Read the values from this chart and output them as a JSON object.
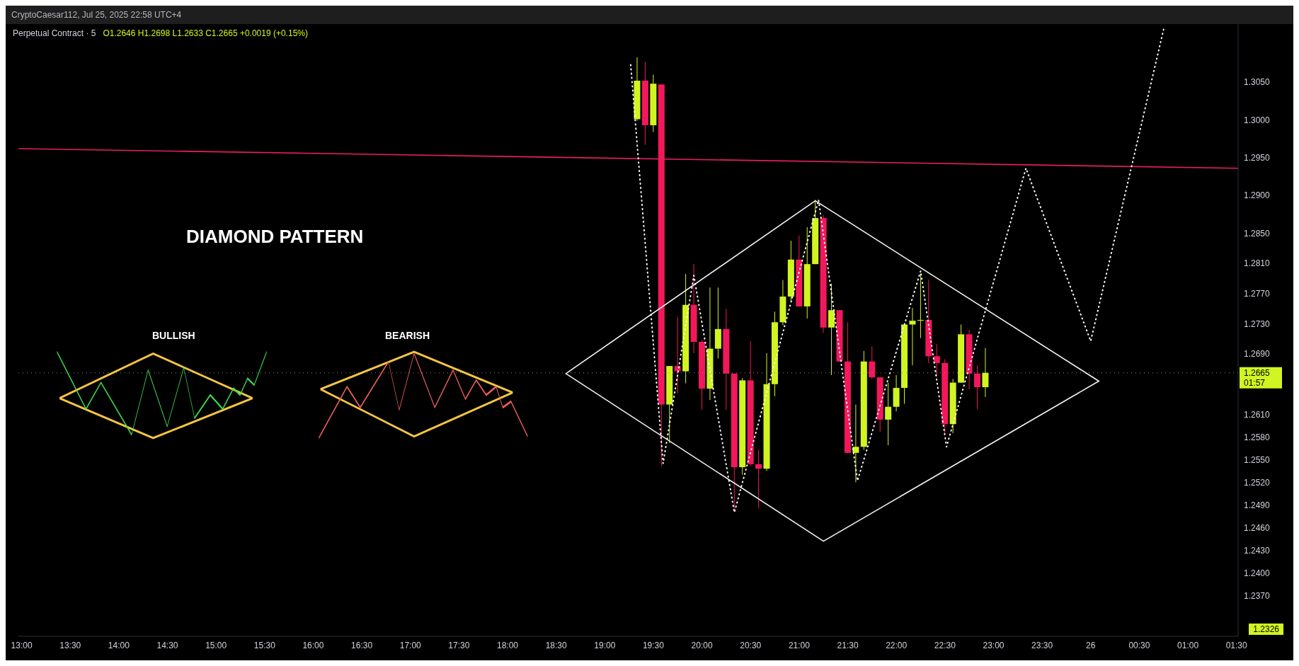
{
  "chart_data": {
    "type": "candlestick",
    "title": "Perpetual Contract · 5",
    "subtitle": "O1.2646 H1.2698 L1.2633 C1.2665 +0.0019 (+0.15%)",
    "annotations": [
      "DIAMOND PATTERN",
      "BULLISH",
      "BEARISH",
      "CryptoCaesar112, Jul 25, 2025 22:58 UTC+4",
      "01:57",
      "1.2326"
    ],
    "x": [
      "2025-07-25T19:20",
      "2025-07-25T19:25",
      "2025-07-25T19:30",
      "2025-07-25T19:35",
      "2025-07-25T19:40",
      "2025-07-25T19:45",
      "2025-07-25T19:50",
      "2025-07-25T19:55",
      "2025-07-25T20:00",
      "2025-07-25T20:05",
      "2025-07-25T20:10",
      "2025-07-25T20:15",
      "2025-07-25T20:20",
      "2025-07-25T20:25",
      "2025-07-25T20:30",
      "2025-07-25T20:35",
      "2025-07-25T20:40",
      "2025-07-25T20:45",
      "2025-07-25T20:50",
      "2025-07-25T20:55",
      "2025-07-25T21:00",
      "2025-07-25T21:05",
      "2025-07-25T21:10",
      "2025-07-25T21:15",
      "2025-07-25T21:20",
      "2025-07-25T21:25",
      "2025-07-25T21:30",
      "2025-07-25T21:35",
      "2025-07-25T21:40",
      "2025-07-25T21:45",
      "2025-07-25T21:50",
      "2025-07-25T21:55",
      "2025-07-25T22:00",
      "2025-07-25T22:05",
      "2025-07-25T22:10",
      "2025-07-25T22:15",
      "2025-07-25T22:20",
      "2025-07-25T22:25",
      "2025-07-25T22:30",
      "2025-07-25T22:35",
      "2025-07-25T22:40",
      "2025-07-25T22:45",
      "2025-07-25T22:50",
      "2025-07-25T22:55"
    ],
    "ohlc": [
      [
        1.3001,
        1.3083,
        1.2999,
        1.3052
      ],
      [
        1.3052,
        1.3077,
        1.2967,
        1.2993
      ],
      [
        1.2993,
        1.306,
        1.2984,
        1.3048
      ],
      [
        1.3047,
        1.3047,
        1.2541,
        1.2623
      ],
      [
        1.2623,
        1.2674,
        1.2572,
        1.2674
      ],
      [
        1.2674,
        1.2739,
        1.2638,
        1.2667
      ],
      [
        1.2667,
        1.2796,
        1.2651,
        1.2755
      ],
      [
        1.2755,
        1.2809,
        1.2691,
        1.2706
      ],
      [
        1.2706,
        1.2708,
        1.2616,
        1.2644
      ],
      [
        1.2644,
        1.2778,
        1.2629,
        1.2697
      ],
      [
        1.2697,
        1.2778,
        1.2684,
        1.2723
      ],
      [
        1.2723,
        1.275,
        1.2616,
        1.2664
      ],
      [
        1.2664,
        1.2664,
        1.2482,
        1.254
      ],
      [
        1.254,
        1.2658,
        1.253,
        1.2655
      ],
      [
        1.2655,
        1.2707,
        1.2542,
        1.2544
      ],
      [
        1.2544,
        1.2563,
        1.2486,
        1.2538
      ],
      [
        1.2538,
        1.2691,
        1.2535,
        1.265
      ],
      [
        1.265,
        1.2746,
        1.2634,
        1.2732
      ],
      [
        1.2732,
        1.2788,
        1.2728,
        1.2766
      ],
      [
        1.2766,
        1.284,
        1.276,
        1.2815
      ],
      [
        1.2815,
        1.2847,
        1.2753,
        1.2753
      ],
      [
        1.2753,
        1.2858,
        1.2737,
        1.2809
      ],
      [
        1.2809,
        1.2894,
        1.2809,
        1.287
      ],
      [
        1.287,
        1.2874,
        1.2718,
        1.2725
      ],
      [
        1.2725,
        1.2783,
        1.2662,
        1.2748
      ],
      [
        1.2748,
        1.2748,
        1.268,
        1.268
      ],
      [
        1.268,
        1.2732,
        1.2559,
        1.2559
      ],
      [
        1.2559,
        1.2623,
        1.252,
        1.2567
      ],
      [
        1.2567,
        1.2694,
        1.2563,
        1.268
      ],
      [
        1.268,
        1.27,
        1.2657,
        1.2659
      ],
      [
        1.2659,
        1.2659,
        1.2587,
        1.2603
      ],
      [
        1.2603,
        1.2652,
        1.2569,
        1.262
      ],
      [
        1.262,
        1.2662,
        1.2614,
        1.2645
      ],
      [
        1.2645,
        1.2731,
        1.2624,
        1.2729
      ],
      [
        1.2729,
        1.2751,
        1.2675,
        1.2734
      ],
      [
        1.2734,
        1.2796,
        1.2711,
        1.2735
      ],
      [
        1.2735,
        1.2788,
        1.2678,
        1.2687
      ],
      [
        1.2687,
        1.2703,
        1.266,
        1.2678
      ],
      [
        1.2678,
        1.2683,
        1.2584,
        1.2597
      ],
      [
        1.2597,
        1.2657,
        1.2585,
        1.2652
      ],
      [
        1.2652,
        1.2729,
        1.2652,
        1.2716
      ],
      [
        1.2716,
        1.2722,
        1.2643,
        1.2664
      ],
      [
        1.2664,
        1.2675,
        1.2617,
        1.2646
      ],
      [
        1.2646,
        1.2698,
        1.2633,
        1.2665
      ]
    ],
    "colors": [
      "#d1f520",
      "#f2185b",
      "#d1f520",
      "#f2185b",
      "#d1f520",
      "#f2185b",
      "#d1f520",
      "#f2185b",
      "#f2185b",
      "#d1f520",
      "#d1f520",
      "#f2185b",
      "#f2185b",
      "#d1f520",
      "#f2185b",
      "#f2185b",
      "#d1f520",
      "#d1f520",
      "#d1f520",
      "#d1f520",
      "#f2185b",
      "#d1f520",
      "#d1f520",
      "#f2185b",
      "#d1f520",
      "#f2185b",
      "#f2185b",
      "#d1f520",
      "#d1f520",
      "#f2185b",
      "#f2185b",
      "#d1f520",
      "#d1f520",
      "#d1f520",
      "#d1f520",
      "#d1f520",
      "#f2185b",
      "#f2185b",
      "#f2185b",
      "#d1f520",
      "#d1f520",
      "#f2185b",
      "#f2185b",
      "#d1f520"
    ],
    "series": [
      {
        "type": "line",
        "color": "#e91e63",
        "line_style": "solid",
        "x": [
          "2025-07-25T12:58",
          "2025-07-26T01:31"
        ],
        "values": [
          1.2962,
          1.2936
        ]
      },
      {
        "type": "line",
        "color": "#f5f5f5",
        "line_style": "solid",
        "x": [
          "2025-07-25T18:36",
          "2025-07-25T21:10",
          "2025-07-26T00:05"
        ],
        "values": [
          1.2664,
          1.2893,
          1.2654
        ]
      },
      {
        "type": "line",
        "color": "#f0f0f0",
        "line_style": "solid",
        "x": [
          "2025-07-25T18:36",
          "2025-07-25T21:15",
          "2025-07-26T00:05"
        ],
        "values": [
          1.2664,
          1.2442,
          1.2654
        ]
      },
      {
        "type": "line",
        "color": "#ffffff",
        "line_style": "dotted",
        "x": [
          "2025-07-25T19:16",
          "2025-07-25T19:36",
          "2025-07-25T19:55",
          "2025-07-25T20:20",
          "2025-07-25T21:12",
          "2025-07-25T21:36",
          "2025-07-25T22:15",
          "2025-07-25T22:31",
          "2025-07-25T23:20",
          "2025-07-26T00:00",
          "2025-07-26T00:45"
        ],
        "values": [
          1.3073,
          1.2545,
          1.2794,
          1.248,
          1.2894,
          1.2522,
          1.28,
          1.2567,
          1.2936,
          1.2707,
          1.312
        ]
      }
    ],
    "ref_lines": [
      {
        "axis": "y",
        "value": 1.2665,
        "label": "1.2665",
        "color": "#8a8a8a",
        "line_style": "dotted"
      }
    ],
    "xlim": [
      "2025-07-25T12:58",
      "2025-07-26T01:31"
    ],
    "xticks": [
      {
        "value": "2025-07-25T13:00",
        "label": "13:00"
      },
      {
        "value": "2025-07-25T13:30",
        "label": "13:30"
      },
      {
        "value": "2025-07-25T14:00",
        "label": "14:00"
      },
      {
        "value": "2025-07-25T14:30",
        "label": "14:30"
      },
      {
        "value": "2025-07-25T15:00",
        "label": "15:00"
      },
      {
        "value": "2025-07-25T15:30",
        "label": "15:30"
      },
      {
        "value": "2025-07-25T16:00",
        "label": "16:00"
      },
      {
        "value": "2025-07-25T16:30",
        "label": "16:30"
      },
      {
        "value": "2025-07-25T17:00",
        "label": "17:00"
      },
      {
        "value": "2025-07-25T17:30",
        "label": "17:30"
      },
      {
        "value": "2025-07-25T18:00",
        "label": "18:00"
      },
      {
        "value": "2025-07-25T18:30",
        "label": "18:30"
      },
      {
        "value": "2025-07-25T19:00",
        "label": "19:00"
      },
      {
        "value": "2025-07-25T19:30",
        "label": "19:30"
      },
      {
        "value": "2025-07-25T20:00",
        "label": "20:00"
      },
      {
        "value": "2025-07-25T20:30",
        "label": "20:30"
      },
      {
        "value": "2025-07-25T21:00",
        "label": "21:00"
      },
      {
        "value": "2025-07-25T21:30",
        "label": "21:30"
      },
      {
        "value": "2025-07-25T22:00",
        "label": "22:00"
      },
      {
        "value": "2025-07-25T22:30",
        "label": "22:30"
      },
      {
        "value": "2025-07-25T23:00",
        "label": "23:00"
      },
      {
        "value": "2025-07-25T23:30",
        "label": "23:30"
      },
      {
        "value": "2025-07-26T00:00",
        "label": "26"
      },
      {
        "value": "2025-07-26T00:30",
        "label": "00:30"
      },
      {
        "value": "2025-07-26T01:00",
        "label": "01:00"
      },
      {
        "value": "2025-07-26T01:30",
        "label": "01:30"
      }
    ],
    "ylim": [
      1.2316,
      1.3127
    ],
    "yticks": [
      {
        "value": 1.237,
        "label": "1.2370"
      },
      {
        "value": 1.24,
        "label": "1.2400"
      },
      {
        "value": 1.243,
        "label": "1.2430"
      },
      {
        "value": 1.246,
        "label": "1.2460"
      },
      {
        "value": 1.249,
        "label": "1.2490"
      },
      {
        "value": 1.252,
        "label": "1.2520"
      },
      {
        "value": 1.255,
        "label": "1.2550"
      },
      {
        "value": 1.258,
        "label": "1.2580"
      },
      {
        "value": 1.261,
        "label": "1.2610"
      },
      {
        "value": 1.269,
        "label": "1.2690"
      },
      {
        "value": 1.273,
        "label": "1.2730"
      },
      {
        "value": 1.277,
        "label": "1.2770"
      },
      {
        "value": 1.281,
        "label": "1.2810"
      },
      {
        "value": 1.285,
        "label": "1.2850"
      },
      {
        "value": 1.29,
        "label": "1.2900"
      },
      {
        "value": 1.295,
        "label": "1.2950"
      },
      {
        "value": 1.3,
        "label": "1.3000"
      },
      {
        "value": 1.305,
        "label": "1.3050"
      }
    ]
  }
}
